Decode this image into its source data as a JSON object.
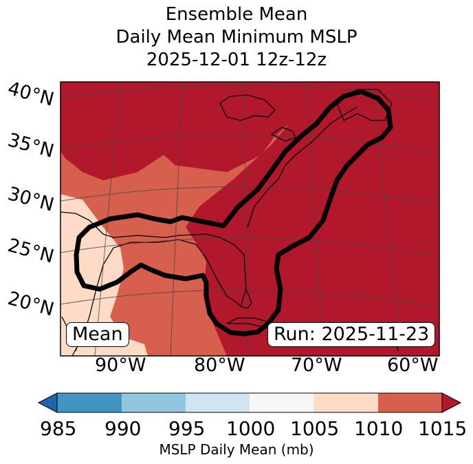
{
  "title": {
    "line1": "Ensemble Mean",
    "line2": "Daily Mean Minimum MSLP",
    "line3": "2025-12-01 12z-12z"
  },
  "map": {
    "lat_labels": [
      "40°N",
      "35°N",
      "30°N",
      "25°N",
      "20°N"
    ],
    "lon_labels": [
      "90°W",
      "80°W",
      "70°W",
      "60°W"
    ],
    "mean_label": "Mean",
    "run_label": "Run: 2025-11-23",
    "colors": {
      "r1015": "#b2182b",
      "r1010": "#d6604d",
      "r1005": "#fddbc7",
      "outline": "#000000"
    }
  },
  "colorbar": {
    "ticks": [
      "985",
      "990",
      "995",
      "1000",
      "1005",
      "1010",
      "1015"
    ],
    "label": "MSLP Daily Mean (mb)",
    "colors": [
      "#2166ac",
      "#4393c3",
      "#92c5de",
      "#d1e5f0",
      "#f7f7f7",
      "#fddbc7",
      "#d6604d",
      "#b2182b"
    ]
  }
}
